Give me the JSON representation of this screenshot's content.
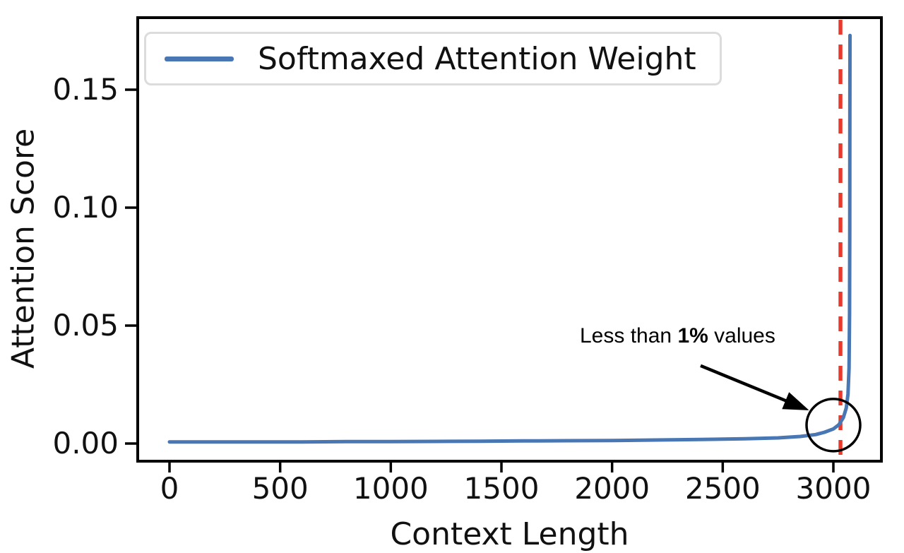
{
  "chart_data": {
    "type": "line",
    "title": "",
    "xlabel": "Context Length",
    "ylabel": "Attention Score",
    "xlim": [
      -150,
      3225
    ],
    "ylim": [
      -0.0075,
      0.182
    ],
    "grid": false,
    "x_ticks": [
      0,
      500,
      1000,
      1500,
      2000,
      2500,
      3000
    ],
    "y_ticks": [
      {
        "value": 0.0,
        "label": "0.00"
      },
      {
        "value": 0.05,
        "label": "0.05"
      },
      {
        "value": 0.1,
        "label": "0.10"
      },
      {
        "value": 0.15,
        "label": "0.15"
      }
    ],
    "legend": {
      "position": "upper left",
      "entries": [
        {
          "label": "Softmaxed Attention Weight",
          "color": "#4877b4"
        }
      ]
    },
    "series": [
      {
        "name": "Softmaxed Attention Weight",
        "color": "#4877b4",
        "points": [
          [
            0,
            0.0007
          ],
          [
            200,
            0.0007
          ],
          [
            400,
            0.0007
          ],
          [
            600,
            0.0007
          ],
          [
            800,
            0.0008
          ],
          [
            1000,
            0.0008
          ],
          [
            1200,
            0.0009
          ],
          [
            1400,
            0.001
          ],
          [
            1600,
            0.0011
          ],
          [
            1800,
            0.0012
          ],
          [
            2000,
            0.0013
          ],
          [
            2200,
            0.0015
          ],
          [
            2400,
            0.0017
          ],
          [
            2600,
            0.002
          ],
          [
            2750,
            0.0024
          ],
          [
            2850,
            0.003
          ],
          [
            2920,
            0.0038
          ],
          [
            2960,
            0.0048
          ],
          [
            3000,
            0.0062
          ],
          [
            3025,
            0.008
          ],
          [
            3045,
            0.011
          ],
          [
            3058,
            0.015
          ],
          [
            3066,
            0.021
          ],
          [
            3071,
            0.032
          ],
          [
            3073,
            0.055
          ],
          [
            3074,
            0.09
          ],
          [
            3074.5,
            0.13
          ],
          [
            3075,
            0.173
          ]
        ]
      }
    ],
    "vline": {
      "x": 3032,
      "color": "#e8392c",
      "style": "dashed"
    },
    "annotation": {
      "text": "Less than 1% values",
      "text_prefix": "Less than ",
      "text_bold": "1%",
      "text_suffix": " values",
      "arrow": {
        "from": [
          2400,
          0.033
        ],
        "to": [
          2890,
          0.0141
        ]
      },
      "circle_at": {
        "x": 3000,
        "y": 0.0078
      }
    }
  }
}
